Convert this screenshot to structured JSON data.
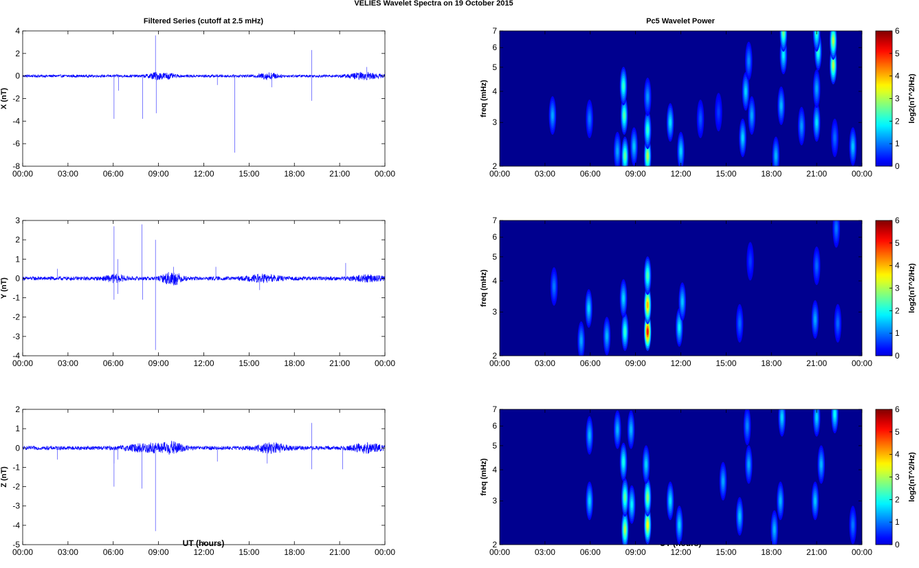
{
  "figure": {
    "suptitle": "VELIES Wavelet Spectra on 19 October   2015",
    "left_title": "Filtered Series (cutoff at 2.5 mHz)",
    "right_title": "Pc5 Wavelet Power",
    "xlabel": "UT (hours)"
  },
  "colors": {
    "trace": "#0000ff",
    "spectrum_background": "#00008f",
    "axis": "#000000",
    "colormap": "jet"
  },
  "chart_data": [
    {
      "type": "line",
      "panel": "filtered-x",
      "title": "Filtered Series (cutoff at 2.5 mHz)",
      "ylabel": "X (nT)",
      "xlabel": "",
      "x_range_hours": [
        0,
        24
      ],
      "x_ticks": [
        "00:00",
        "03:00",
        "06:00",
        "09:00",
        "12:00",
        "15:00",
        "18:00",
        "21:00",
        "00:00"
      ],
      "ylim": [
        -8,
        4
      ],
      "y_ticks": [
        -8,
        -6,
        -4,
        -2,
        0,
        2,
        4
      ],
      "baseline_amplitude": 0.12,
      "bursts": [
        {
          "t": 8.8,
          "amp": 0.25,
          "width": 0.5
        },
        {
          "t": 9.6,
          "amp": 0.2,
          "width": 0.4
        },
        {
          "t": 16.3,
          "amp": 0.25,
          "width": 0.6
        },
        {
          "t": 22.6,
          "amp": 0.25,
          "width": 1.0
        }
      ],
      "spikes": [
        {
          "t": 6.05,
          "v": -3.8
        },
        {
          "t": 6.35,
          "v": -1.3
        },
        {
          "t": 7.95,
          "v": -3.8
        },
        {
          "t": 8.8,
          "v": 3.6
        },
        {
          "t": 8.85,
          "v": -3.3
        },
        {
          "t": 14.05,
          "v": -6.8
        },
        {
          "t": 19.15,
          "v": 2.3
        },
        {
          "t": 19.15,
          "v": -2.2
        },
        {
          "t": 12.9,
          "v": -0.8
        },
        {
          "t": 16.5,
          "v": -1.0
        },
        {
          "t": 22.8,
          "v": 0.8
        }
      ]
    },
    {
      "type": "line",
      "panel": "filtered-y",
      "title": "",
      "ylabel": "Y (nT)",
      "xlabel": "",
      "x_range_hours": [
        0,
        24
      ],
      "x_ticks": [
        "00:00",
        "03:00",
        "06:00",
        "09:00",
        "12:00",
        "15:00",
        "18:00",
        "21:00",
        "00:00"
      ],
      "ylim": [
        -4,
        3
      ],
      "y_ticks": [
        -4,
        -3,
        -2,
        -1,
        0,
        1,
        2,
        3
      ],
      "baseline_amplitude": 0.1,
      "bursts": [
        {
          "t": 9.9,
          "amp": 0.3,
          "width": 0.6
        },
        {
          "t": 16.0,
          "amp": 0.15,
          "width": 1.0
        },
        {
          "t": 6.1,
          "amp": 0.15,
          "width": 0.6
        },
        {
          "t": 22.8,
          "amp": 0.12,
          "width": 1.0
        }
      ],
      "spikes": [
        {
          "t": 6.05,
          "v": 2.7
        },
        {
          "t": 6.05,
          "v": -1.1
        },
        {
          "t": 6.3,
          "v": 1.0
        },
        {
          "t": 7.9,
          "v": 2.8
        },
        {
          "t": 7.95,
          "v": -1.1
        },
        {
          "t": 8.8,
          "v": 2.0
        },
        {
          "t": 8.8,
          "v": -3.7
        },
        {
          "t": 2.3,
          "v": 0.5
        },
        {
          "t": 6.3,
          "v": -0.8
        },
        {
          "t": 10.0,
          "v": 0.6
        },
        {
          "t": 12.8,
          "v": 0.6
        },
        {
          "t": 21.4,
          "v": 0.8
        },
        {
          "t": 15.7,
          "v": -0.6
        }
      ]
    },
    {
      "type": "line",
      "panel": "filtered-z",
      "title": "",
      "ylabel": "Z (nT)",
      "xlabel": "UT (hours)",
      "x_range_hours": [
        0,
        24
      ],
      "x_ticks": [
        "00:00",
        "03:00",
        "06:00",
        "09:00",
        "12:00",
        "15:00",
        "18:00",
        "21:00",
        "00:00"
      ],
      "ylim": [
        -5,
        2
      ],
      "y_ticks": [
        -5,
        -4,
        -3,
        -2,
        -1,
        0,
        1,
        2
      ],
      "baseline_amplitude": 0.1,
      "bursts": [
        {
          "t": 8.5,
          "amp": 0.2,
          "width": 1.5
        },
        {
          "t": 10.0,
          "amp": 0.2,
          "width": 0.6
        },
        {
          "t": 16.5,
          "amp": 0.2,
          "width": 1.0
        },
        {
          "t": 22.8,
          "amp": 0.2,
          "width": 1.0
        }
      ],
      "spikes": [
        {
          "t": 6.05,
          "v": -2.0
        },
        {
          "t": 6.05,
          "v": -0.8
        },
        {
          "t": 6.3,
          "v": -0.6
        },
        {
          "t": 7.9,
          "v": -2.1
        },
        {
          "t": 8.8,
          "v": -4.3
        },
        {
          "t": 19.15,
          "v": 1.3
        },
        {
          "t": 19.15,
          "v": -1.1
        },
        {
          "t": 2.3,
          "v": -0.6
        },
        {
          "t": 12.9,
          "v": -0.7
        },
        {
          "t": 21.2,
          "v": -1.1
        },
        {
          "t": 16.2,
          "v": -0.8
        }
      ]
    },
    {
      "type": "heatmap",
      "panel": "wavelet-x",
      "title": "Pc5 Wavelet Power",
      "ylabel": "freq (mHz)",
      "xlabel": "",
      "x_range_hours": [
        0,
        24
      ],
      "x_ticks": [
        "00:00",
        "03:00",
        "06:00",
        "09:00",
        "12:00",
        "15:00",
        "18:00",
        "21:00",
        "00:00"
      ],
      "y_scale": "log",
      "ylim": [
        2,
        7
      ],
      "y_ticks": [
        2,
        3,
        4,
        5,
        6,
        7
      ],
      "colorbar": {
        "label": "log2(nT^2/Hz)",
        "range": [
          0,
          6
        ],
        "ticks": [
          0,
          1,
          2,
          3,
          4,
          5,
          6
        ]
      },
      "blobs": [
        {
          "t": 3.5,
          "f": 3.2,
          "v": 1.3
        },
        {
          "t": 5.95,
          "f": 3.1,
          "v": 1.0
        },
        {
          "t": 7.8,
          "f": 2.3,
          "v": 1.3
        },
        {
          "t": 8.3,
          "f": 2.2,
          "v": 2.5
        },
        {
          "t": 8.25,
          "f": 3.2,
          "v": 2.4
        },
        {
          "t": 8.2,
          "f": 4.2,
          "v": 2.2
        },
        {
          "t": 8.9,
          "f": 2.4,
          "v": 1.5
        },
        {
          "t": 9.8,
          "f": 2.2,
          "v": 3.0
        },
        {
          "t": 9.8,
          "f": 2.8,
          "v": 2.2
        },
        {
          "t": 9.8,
          "f": 3.8,
          "v": 1.2
        },
        {
          "t": 11.3,
          "f": 3.0,
          "v": 1.7
        },
        {
          "t": 12.0,
          "f": 2.3,
          "v": 1.6
        },
        {
          "t": 13.3,
          "f": 3.1,
          "v": 0.8
        },
        {
          "t": 14.5,
          "f": 3.3,
          "v": 0.6
        },
        {
          "t": 16.1,
          "f": 2.6,
          "v": 1.6
        },
        {
          "t": 16.3,
          "f": 4.0,
          "v": 1.6
        },
        {
          "t": 16.7,
          "f": 3.2,
          "v": 1.3
        },
        {
          "t": 16.5,
          "f": 5.3,
          "v": 1.1
        },
        {
          "t": 18.3,
          "f": 2.2,
          "v": 1.4
        },
        {
          "t": 18.65,
          "f": 3.5,
          "v": 1.4
        },
        {
          "t": 18.8,
          "f": 5.6,
          "v": 1.8
        },
        {
          "t": 18.8,
          "f": 6.9,
          "v": 2.6
        },
        {
          "t": 20.0,
          "f": 2.9,
          "v": 1.2
        },
        {
          "t": 21.0,
          "f": 3.0,
          "v": 1.7
        },
        {
          "t": 21.0,
          "f": 4.1,
          "v": 1.3
        },
        {
          "t": 21.1,
          "f": 5.8,
          "v": 2.2
        },
        {
          "t": 21.0,
          "f": 6.9,
          "v": 2.2
        },
        {
          "t": 22.1,
          "f": 5.1,
          "v": 3.0
        },
        {
          "t": 22.1,
          "f": 6.4,
          "v": 3.0
        },
        {
          "t": 22.2,
          "f": 2.6,
          "v": 0.9
        },
        {
          "t": 23.4,
          "f": 2.4,
          "v": 1.5
        }
      ]
    },
    {
      "type": "heatmap",
      "panel": "wavelet-y",
      "title": "",
      "ylabel": "freq (mHz)",
      "xlabel": "",
      "x_range_hours": [
        0,
        24
      ],
      "x_ticks": [
        "00:00",
        "03:00",
        "06:00",
        "09:00",
        "12:00",
        "15:00",
        "18:00",
        "21:00",
        "00:00"
      ],
      "y_scale": "log",
      "ylim": [
        2,
        7
      ],
      "y_ticks": [
        2,
        3,
        4,
        5,
        6,
        7
      ],
      "colorbar": {
        "label": "log2(nT^2/Hz)",
        "range": [
          0,
          6
        ],
        "ticks": [
          0,
          1,
          2,
          3,
          4,
          5,
          6
        ]
      },
      "blobs": [
        {
          "t": 3.6,
          "f": 3.8,
          "v": 1.0
        },
        {
          "t": 5.4,
          "f": 2.3,
          "v": 1.3
        },
        {
          "t": 5.9,
          "f": 3.1,
          "v": 1.6
        },
        {
          "t": 7.1,
          "f": 2.4,
          "v": 1.4
        },
        {
          "t": 8.3,
          "f": 2.5,
          "v": 2.2
        },
        {
          "t": 8.2,
          "f": 3.4,
          "v": 1.6
        },
        {
          "t": 9.8,
          "f": 2.5,
          "v": 5.0
        },
        {
          "t": 9.8,
          "f": 3.2,
          "v": 4.0
        },
        {
          "t": 9.8,
          "f": 4.2,
          "v": 2.4
        },
        {
          "t": 11.9,
          "f": 2.6,
          "v": 1.8
        },
        {
          "t": 12.1,
          "f": 3.3,
          "v": 1.5
        },
        {
          "t": 15.9,
          "f": 2.7,
          "v": 0.9
        },
        {
          "t": 16.6,
          "f": 4.8,
          "v": 0.6
        },
        {
          "t": 20.9,
          "f": 2.8,
          "v": 1.3
        },
        {
          "t": 21.0,
          "f": 4.6,
          "v": 0.9
        },
        {
          "t": 22.4,
          "f": 2.7,
          "v": 0.9
        },
        {
          "t": 22.3,
          "f": 6.5,
          "v": 1.0
        }
      ]
    },
    {
      "type": "heatmap",
      "panel": "wavelet-z",
      "title": "",
      "ylabel": "freq (mHz)",
      "xlabel": "UT (hours)",
      "x_range_hours": [
        0,
        24
      ],
      "x_ticks": [
        "00:00",
        "03:00",
        "06:00",
        "09:00",
        "12:00",
        "15:00",
        "18:00",
        "21:00",
        "00:00"
      ],
      "y_scale": "log",
      "ylim": [
        2,
        7
      ],
      "y_ticks": [
        2,
        3,
        4,
        5,
        6,
        7
      ],
      "colorbar": {
        "label": "log2(nT^2/Hz)",
        "range": [
          0,
          6
        ],
        "ticks": [
          0,
          1,
          2,
          3,
          4,
          5,
          6
        ]
      },
      "blobs": [
        {
          "t": 5.95,
          "f": 3.0,
          "v": 1.6
        },
        {
          "t": 5.95,
          "f": 5.5,
          "v": 1.4
        },
        {
          "t": 7.8,
          "f": 5.8,
          "v": 1.4
        },
        {
          "t": 8.3,
          "f": 2.3,
          "v": 3.0
        },
        {
          "t": 8.3,
          "f": 3.1,
          "v": 2.5
        },
        {
          "t": 8.2,
          "f": 4.3,
          "v": 2.0
        },
        {
          "t": 8.75,
          "f": 2.9,
          "v": 1.8
        },
        {
          "t": 8.7,
          "f": 5.8,
          "v": 1.4
        },
        {
          "t": 9.8,
          "f": 2.4,
          "v": 3.5
        },
        {
          "t": 9.8,
          "f": 3.1,
          "v": 2.8
        },
        {
          "t": 9.7,
          "f": 4.2,
          "v": 1.6
        },
        {
          "t": 11.3,
          "f": 3.0,
          "v": 1.7
        },
        {
          "t": 11.9,
          "f": 2.4,
          "v": 1.6
        },
        {
          "t": 14.8,
          "f": 3.6,
          "v": 1.3
        },
        {
          "t": 15.9,
          "f": 2.6,
          "v": 1.5
        },
        {
          "t": 16.5,
          "f": 4.2,
          "v": 1.3
        },
        {
          "t": 16.4,
          "f": 6.0,
          "v": 1.1
        },
        {
          "t": 18.2,
          "f": 2.3,
          "v": 1.4
        },
        {
          "t": 18.6,
          "f": 3.0,
          "v": 1.4
        },
        {
          "t": 18.7,
          "f": 6.5,
          "v": 1.6
        },
        {
          "t": 20.9,
          "f": 3.0,
          "v": 1.5
        },
        {
          "t": 21.3,
          "f": 4.2,
          "v": 1.4
        },
        {
          "t": 21.0,
          "f": 6.5,
          "v": 1.6
        },
        {
          "t": 22.2,
          "f": 6.7,
          "v": 1.9
        },
        {
          "t": 23.4,
          "f": 2.4,
          "v": 1.0
        }
      ]
    }
  ]
}
